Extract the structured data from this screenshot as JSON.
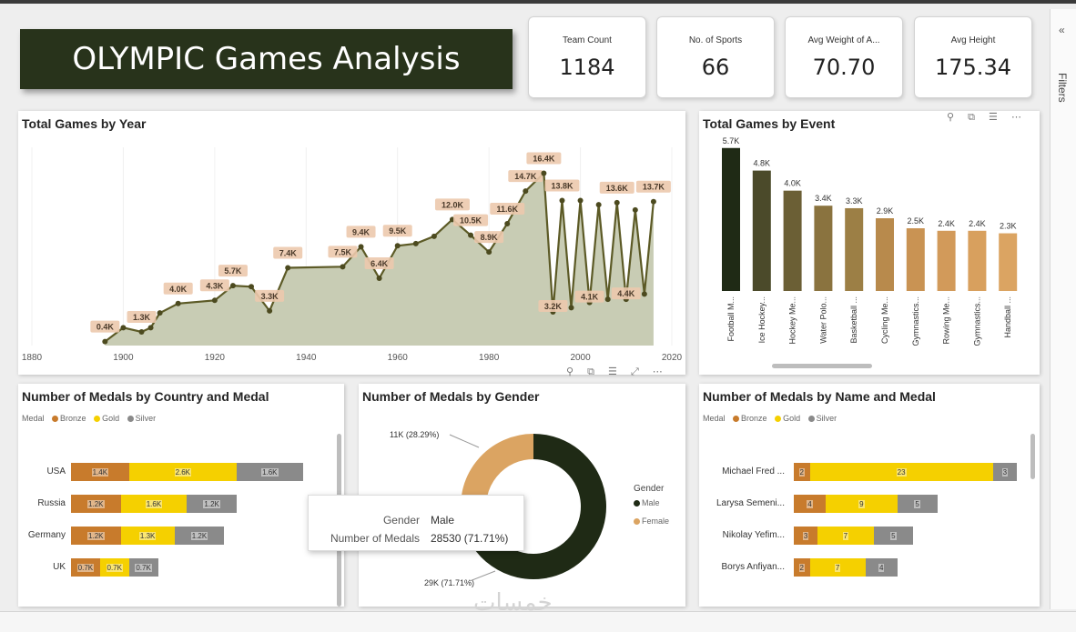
{
  "dashboard": {
    "title": "OLYMPIC Games Analysis",
    "filters_label": "Filters",
    "filters_chevron": "«",
    "watermark": "خمسات"
  },
  "kpis": [
    {
      "label": "Team Count",
      "value": "1184"
    },
    {
      "label": "No. of Sports",
      "value": "66"
    },
    {
      "label": "Avg Weight of A...",
      "value": "70.70"
    },
    {
      "label": "Avg Height",
      "value": "175.34"
    }
  ],
  "panels": {
    "games_by_year": {
      "title": "Total Games by Year"
    },
    "games_by_event": {
      "title": "Total Games by Event"
    },
    "medals_by_country": {
      "title": "Number of Medals by Country and Medal"
    },
    "medals_by_gender": {
      "title": "Number of Medals by Gender"
    },
    "medals_by_name": {
      "title": "Number of Medals by Name and Medal"
    }
  },
  "legend": {
    "title": "Medal",
    "items": [
      {
        "name": "Bronze",
        "color": "#c87b2c"
      },
      {
        "name": "Gold",
        "color": "#f5d000"
      },
      {
        "name": "Silver",
        "color": "#8a8a8a"
      }
    ]
  },
  "gender_legend": {
    "title": "Gender",
    "items": [
      {
        "name": "Male",
        "color": "#1f2a15"
      },
      {
        "name": "Female",
        "color": "#dba462"
      }
    ]
  },
  "tooltip": {
    "row1_label": "Gender",
    "row1_value": "Male",
    "row2_label": "Number of Medals",
    "row2_value": "28530 (71.71%)"
  },
  "chart_data": [
    {
      "type": "area",
      "title": "Total Games by Year",
      "x_ticks": [
        "1880",
        "1900",
        "1920",
        "1940",
        "1960",
        "1980",
        "2000",
        "2020"
      ],
      "xlim": [
        1880,
        2020
      ],
      "ylim": [
        0,
        18000
      ],
      "points": [
        {
          "x": 1896,
          "y": 380,
          "label": "0.4K"
        },
        {
          "x": 1900,
          "y": 1700,
          "label": ""
        },
        {
          "x": 1904,
          "y": 1300,
          "label": "1.3K"
        },
        {
          "x": 1906,
          "y": 1700,
          "label": ""
        },
        {
          "x": 1908,
          "y": 3100,
          "label": ""
        },
        {
          "x": 1912,
          "y": 4000,
          "label": "4.0K"
        },
        {
          "x": 1920,
          "y": 4300,
          "label": "4.3K"
        },
        {
          "x": 1924,
          "y": 5700,
          "label": "5.7K"
        },
        {
          "x": 1928,
          "y": 5600,
          "label": ""
        },
        {
          "x": 1932,
          "y": 3300,
          "label": "3.3K"
        },
        {
          "x": 1936,
          "y": 7400,
          "label": "7.4K"
        },
        {
          "x": 1948,
          "y": 7500,
          "label": "7.5K"
        },
        {
          "x": 1952,
          "y": 9400,
          "label": "9.4K"
        },
        {
          "x": 1956,
          "y": 6400,
          "label": "6.4K"
        },
        {
          "x": 1960,
          "y": 9500,
          "label": "9.5K"
        },
        {
          "x": 1964,
          "y": 9700,
          "label": ""
        },
        {
          "x": 1968,
          "y": 10400,
          "label": ""
        },
        {
          "x": 1972,
          "y": 12000,
          "label": "12.0K"
        },
        {
          "x": 1976,
          "y": 10500,
          "label": "10.5K"
        },
        {
          "x": 1980,
          "y": 8900,
          "label": "8.9K"
        },
        {
          "x": 1984,
          "y": 11600,
          "label": "11.6K"
        },
        {
          "x": 1988,
          "y": 14700,
          "label": "14.7K"
        },
        {
          "x": 1992,
          "y": 16400,
          "label": "16.4K"
        },
        {
          "x": 1994,
          "y": 3200,
          "label": "3.2K"
        },
        {
          "x": 1996,
          "y": 13800,
          "label": "13.8K"
        },
        {
          "x": 1998,
          "y": 3600,
          "label": ""
        },
        {
          "x": 2000,
          "y": 13800,
          "label": ""
        },
        {
          "x": 2002,
          "y": 4100,
          "label": "4.1K"
        },
        {
          "x": 2004,
          "y": 13400,
          "label": ""
        },
        {
          "x": 2006,
          "y": 4400,
          "label": ""
        },
        {
          "x": 2008,
          "y": 13600,
          "label": "13.6K"
        },
        {
          "x": 2010,
          "y": 4400,
          "label": "4.4K"
        },
        {
          "x": 2012,
          "y": 12900,
          "label": ""
        },
        {
          "x": 2014,
          "y": 4900,
          "label": ""
        },
        {
          "x": 2016,
          "y": 13700,
          "label": "13.7K"
        }
      ]
    },
    {
      "type": "bar",
      "title": "Total Games by Event",
      "ylim": [
        0,
        5800
      ],
      "categories": [
        "Football M...",
        "Ice Hockey...",
        "Hockey Me...",
        "Water Polo...",
        "Basketball ...",
        "Cycling Me...",
        "Gymnastics...",
        "Rowing Me...",
        "Gymnastics...",
        "Handball ..."
      ],
      "values": [
        5700,
        4800,
        4000,
        3400,
        3300,
        2900,
        2500,
        2400,
        2400,
        2300
      ],
      "labels": [
        "5.7K",
        "4.8K",
        "4.0K",
        "3.4K",
        "3.3K",
        "2.9K",
        "2.5K",
        "2.4K",
        "2.4K",
        "2.3K"
      ],
      "colors": [
        "#1f2a15",
        "#4b4a2a",
        "#6b5f35",
        "#8a733f",
        "#9c7f45",
        "#b88a4c",
        "#c99353",
        "#d29a5a",
        "#d8a05e",
        "#dba462"
      ]
    },
    {
      "type": "bar",
      "title": "Number of Medals by Country and Medal",
      "stacked": true,
      "orientation": "horizontal",
      "xlim": [
        0,
        6200
      ],
      "categories": [
        "USA",
        "Russia",
        "Germany",
        "UK"
      ],
      "series": [
        {
          "name": "Bronze",
          "values": [
            1400,
            1200,
            1200,
            700
          ],
          "labels": [
            "1.4K",
            "1.2K",
            "1.2K",
            "0.7K"
          ]
        },
        {
          "name": "Gold",
          "values": [
            2600,
            1600,
            1300,
            700
          ],
          "labels": [
            "2.6K",
            "1.6K",
            "1.3K",
            "0.7K"
          ]
        },
        {
          "name": "Silver",
          "values": [
            1600,
            1200,
            1200,
            700
          ],
          "labels": [
            "1.6K",
            "1.2K",
            "1.2K",
            "0.7K"
          ]
        }
      ]
    },
    {
      "type": "pie",
      "title": "Number of Medals by Gender",
      "donut": true,
      "slices": [
        {
          "name": "Male",
          "value": 28530,
          "label": "29K (71.71%)"
        },
        {
          "name": "Female",
          "value": 11255,
          "label": "11K (28.29%)"
        }
      ]
    },
    {
      "type": "bar",
      "title": "Number of Medals by Name and Medal",
      "stacked": true,
      "orientation": "horizontal",
      "xlim": [
        0,
        28
      ],
      "categories": [
        "Michael Fred ...",
        "Larysa Semeni...",
        "Nikolay Yefim...",
        "Borys Anfiyan..."
      ],
      "series": [
        {
          "name": "Bronze",
          "values": [
            2,
            4,
            3,
            2
          ],
          "labels": [
            "2",
            "4",
            "3",
            "2"
          ]
        },
        {
          "name": "Gold",
          "values": [
            23,
            9,
            7,
            7
          ],
          "labels": [
            "23",
            "9",
            "7",
            "7"
          ]
        },
        {
          "name": "Silver",
          "values": [
            3,
            5,
            5,
            4
          ],
          "labels": [
            "3",
            "5",
            "5",
            "4"
          ]
        }
      ]
    }
  ]
}
